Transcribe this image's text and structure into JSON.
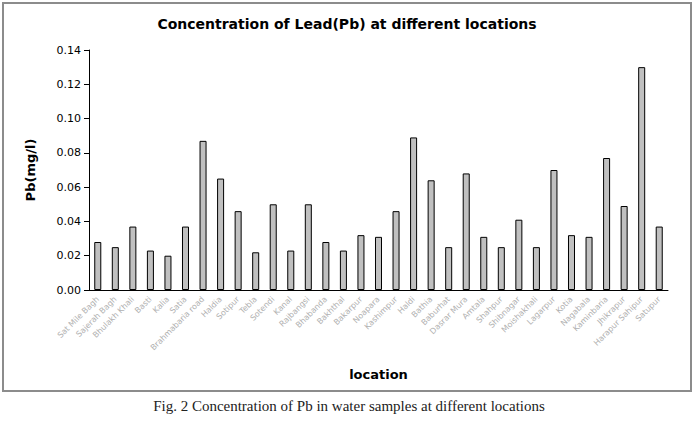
{
  "chart_data": {
    "type": "bar",
    "title": "Concentration of Lead(Pb) at different locations",
    "caption": "Fig. 2 Concentration of Pb in water samples at different locations",
    "x_label": "location",
    "y_label": "Pb(mg/l)",
    "categories": [
      "Sat Mile Bagh",
      "Sajerah Bagh",
      "Bhulakh Khali",
      "Basti",
      "Kalia",
      "Satia",
      "Brahmabaria road",
      "Haldia",
      "Sotipur",
      "Tebla",
      "Sotendi",
      "Kanal",
      "Rajbangsi",
      "Bhabanda",
      "Bakhthal",
      "Bakarpur",
      "Noapara",
      "Kashimpur",
      "Haldi",
      "Bathia",
      "Baburhat",
      "Dasrar Mura",
      "Amtala",
      "Shahpur",
      "Shibnagar",
      "Moishakhali",
      "Lagarpur",
      "Kotia",
      "Nagabala",
      "Kaminbaria",
      "Jhikrapur",
      "Harapur Sahipur",
      "Satupur"
    ],
    "values": [
      0.028,
      0.025,
      0.037,
      0.023,
      0.02,
      0.037,
      0.087,
      0.065,
      0.046,
      0.022,
      0.05,
      0.023,
      0.05,
      0.028,
      0.023,
      0.032,
      0.031,
      0.046,
      0.089,
      0.064,
      0.025,
      0.068,
      0.031,
      0.025,
      0.041,
      0.025,
      0.07,
      0.032,
      0.031,
      0.077,
      0.049,
      0.13,
      0.037
    ],
    "color": "#c0c0c0",
    "ylim": [
      0,
      0.14
    ],
    "yticks": [
      {
        "value": 0,
        "label": "0.00"
      },
      {
        "value": 0.02,
        "label": "0.02"
      },
      {
        "value": 0.04,
        "label": "0.04"
      },
      {
        "value": 0.06,
        "label": "0.06"
      },
      {
        "value": 0.08,
        "label": "0.08"
      },
      {
        "value": 0.1,
        "label": "0.10"
      },
      {
        "value": 0.12,
        "label": "0.12"
      },
      {
        "value": 0.14,
        "label": "0.14"
      }
    ],
    "grid": false
  }
}
